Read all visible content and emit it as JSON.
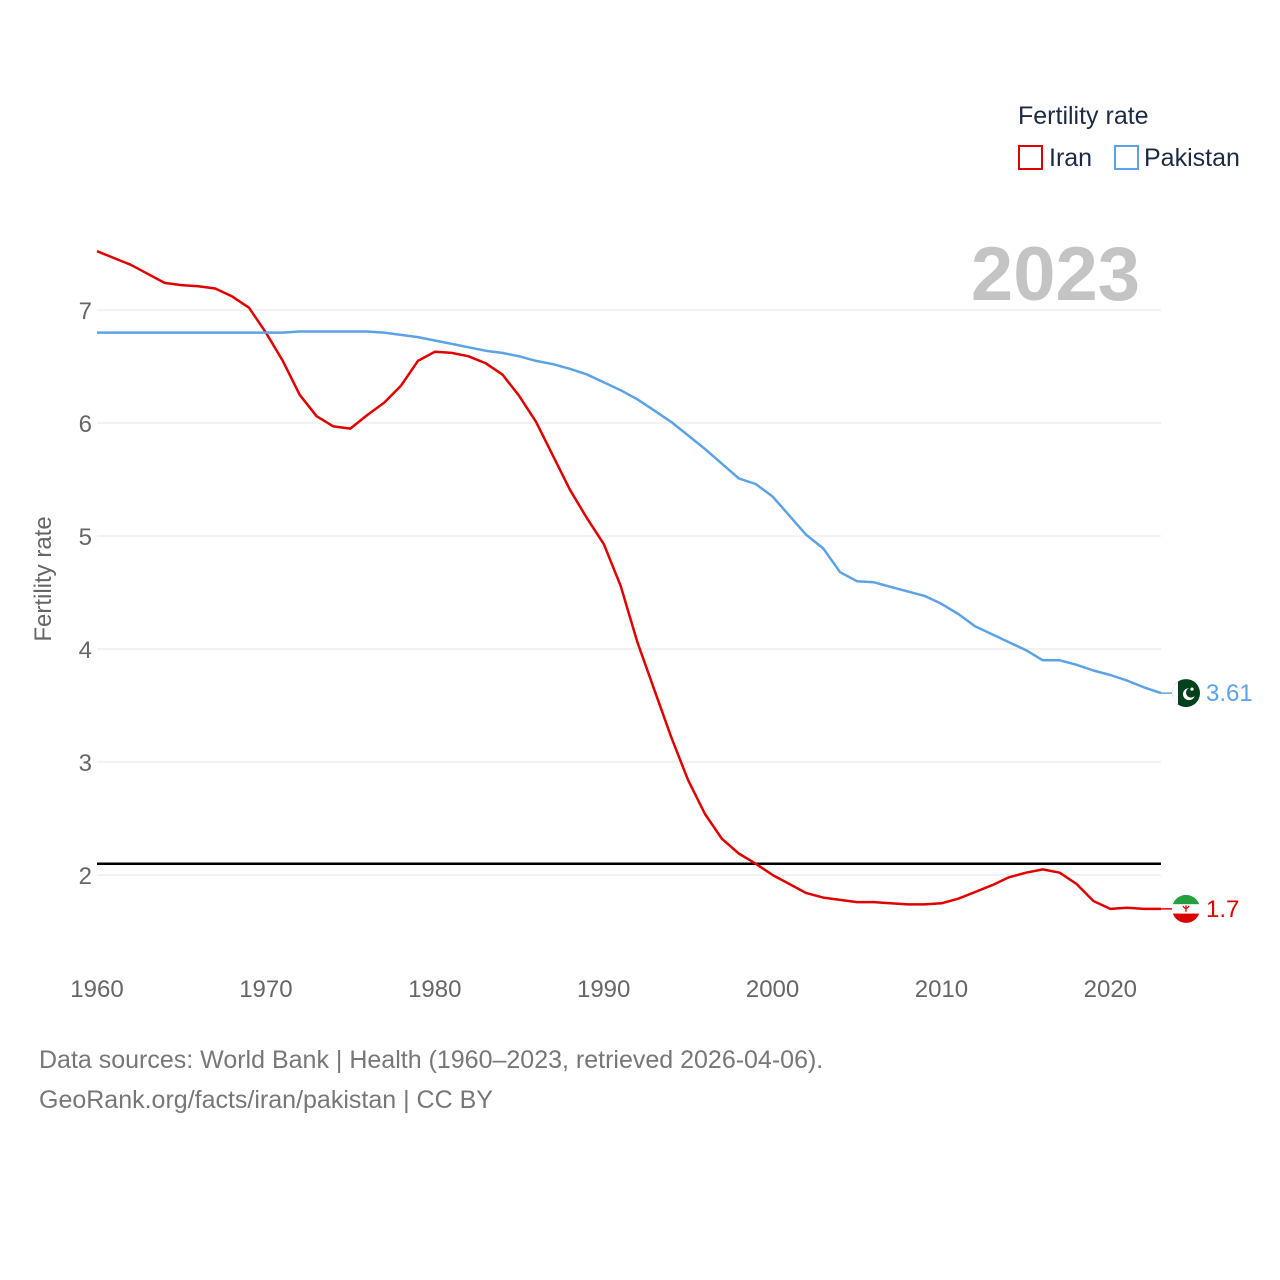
{
  "chart_data": {
    "type": "line",
    "ylabel": "Fertility rate",
    "xlabel": "",
    "xlim": [
      1960,
      2023
    ],
    "ylim": [
      1.4,
      7.6
    ],
    "x_ticks": [
      1960,
      1970,
      1980,
      1990,
      2000,
      2010,
      2020
    ],
    "y_ticks": [
      2,
      3,
      4,
      5,
      6,
      7
    ],
    "grid": true,
    "reference_line": 2.1,
    "year_label": "2023",
    "legend": {
      "title": "Fertility rate",
      "placement": "top-right"
    },
    "x": [
      1960,
      1961,
      1962,
      1963,
      1964,
      1965,
      1966,
      1967,
      1968,
      1969,
      1970,
      1971,
      1972,
      1973,
      1974,
      1975,
      1976,
      1977,
      1978,
      1979,
      1980,
      1981,
      1982,
      1983,
      1984,
      1985,
      1986,
      1987,
      1988,
      1989,
      1990,
      1991,
      1992,
      1993,
      1994,
      1995,
      1996,
      1997,
      1998,
      1999,
      2000,
      2001,
      2002,
      2003,
      2004,
      2005,
      2006,
      2007,
      2008,
      2009,
      2010,
      2011,
      2012,
      2013,
      2014,
      2015,
      2016,
      2017,
      2018,
      2019,
      2020,
      2021,
      2022,
      2023
    ],
    "series": [
      {
        "name": "Iran",
        "color": "#e00000",
        "end_label": "1.7",
        "flag": "iran-flag",
        "values": [
          7.52,
          7.46,
          7.4,
          7.32,
          7.24,
          7.22,
          7.21,
          7.19,
          7.12,
          7.02,
          6.8,
          6.55,
          6.25,
          6.06,
          5.97,
          5.95,
          6.07,
          6.18,
          6.33,
          6.55,
          6.63,
          6.62,
          6.59,
          6.53,
          6.43,
          6.24,
          6.01,
          5.71,
          5.41,
          5.16,
          4.93,
          4.56,
          4.06,
          3.64,
          3.22,
          2.84,
          2.54,
          2.32,
          2.19,
          2.1,
          2.0,
          1.92,
          1.84,
          1.8,
          1.78,
          1.76,
          1.76,
          1.75,
          1.74,
          1.74,
          1.75,
          1.79,
          1.85,
          1.91,
          1.98,
          2.02,
          2.05,
          2.02,
          1.92,
          1.77,
          1.7,
          1.71,
          1.7,
          1.7
        ]
      },
      {
        "name": "Pakistan",
        "color": "#5ba3e6",
        "end_label": "3.61",
        "flag": "pakistan-flag",
        "values": [
          6.8,
          6.8,
          6.8,
          6.8,
          6.8,
          6.8,
          6.8,
          6.8,
          6.8,
          6.8,
          6.8,
          6.8,
          6.81,
          6.81,
          6.81,
          6.81,
          6.81,
          6.8,
          6.78,
          6.76,
          6.73,
          6.7,
          6.67,
          6.64,
          6.62,
          6.59,
          6.55,
          6.52,
          6.48,
          6.43,
          6.36,
          6.29,
          6.21,
          6.11,
          6.01,
          5.89,
          5.77,
          5.64,
          5.51,
          5.46,
          5.35,
          5.18,
          5.01,
          4.89,
          4.68,
          4.6,
          4.59,
          4.55,
          4.51,
          4.47,
          4.4,
          4.31,
          4.2,
          4.13,
          4.06,
          3.99,
          3.9,
          3.9,
          3.86,
          3.81,
          3.77,
          3.72,
          3.66,
          3.61
        ]
      }
    ]
  },
  "footer": {
    "line1": "Data sources: World Bank | Health (1960–2023, retrieved 2026-04-06).",
    "line2": "GeoRank.org/facts/iran/pakistan | CC BY"
  }
}
